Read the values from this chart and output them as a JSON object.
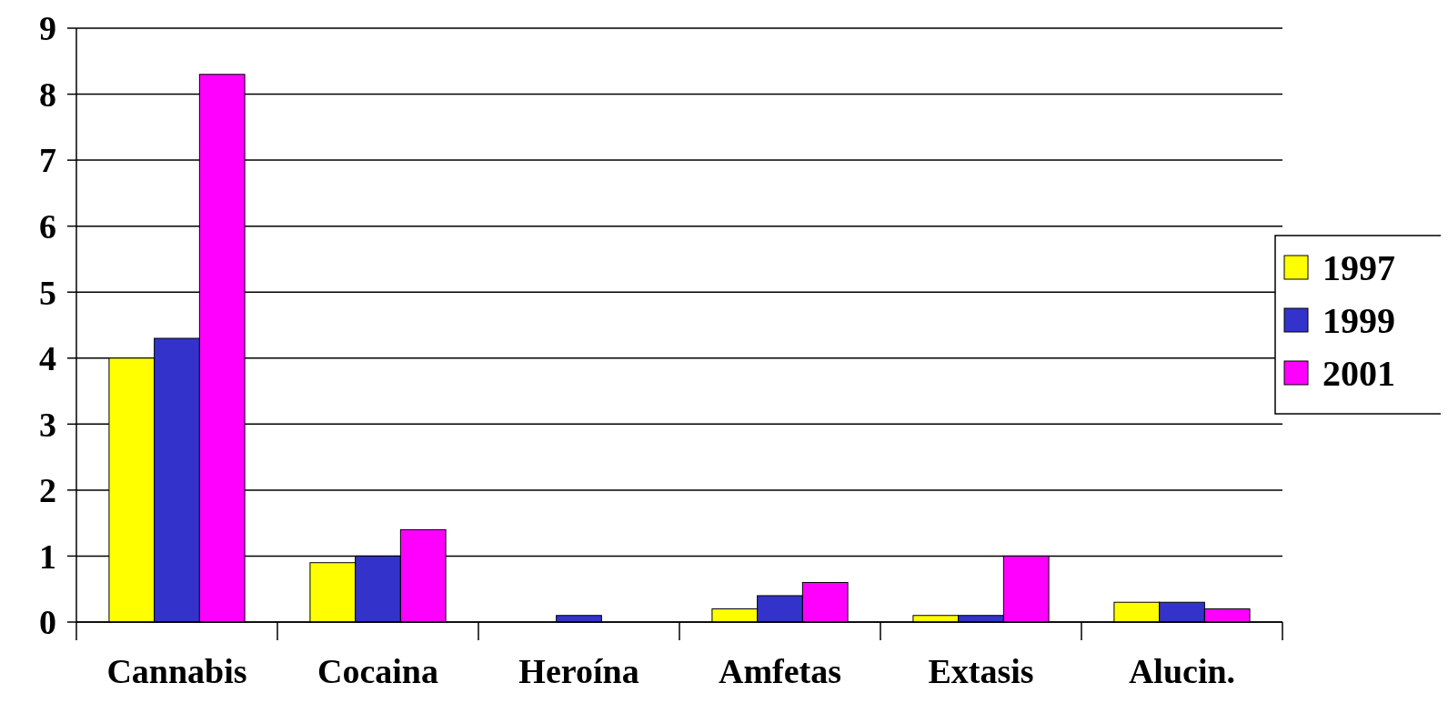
{
  "chart_data": {
    "type": "bar",
    "categories": [
      "Cannabis",
      "Cocaina",
      "Heroína",
      "Amfetas",
      "Extasis",
      "Alucin."
    ],
    "series": [
      {
        "name": "1997",
        "color": "#ffff00",
        "values": [
          4,
          0.9,
          0,
          0.2,
          0.1,
          0.3
        ]
      },
      {
        "name": "1999",
        "color": "#3333cc",
        "values": [
          4.3,
          1,
          0.1,
          0.4,
          0.1,
          0.3
        ]
      },
      {
        "name": "2001",
        "color": "#ff00ff",
        "values": [
          8.3,
          1.4,
          0,
          0.6,
          1,
          0.2
        ]
      }
    ],
    "ylim": [
      0,
      9
    ],
    "yticks": [
      0,
      1,
      2,
      3,
      4,
      5,
      6,
      7,
      8,
      9
    ],
    "grid": "y",
    "legend": "right"
  }
}
